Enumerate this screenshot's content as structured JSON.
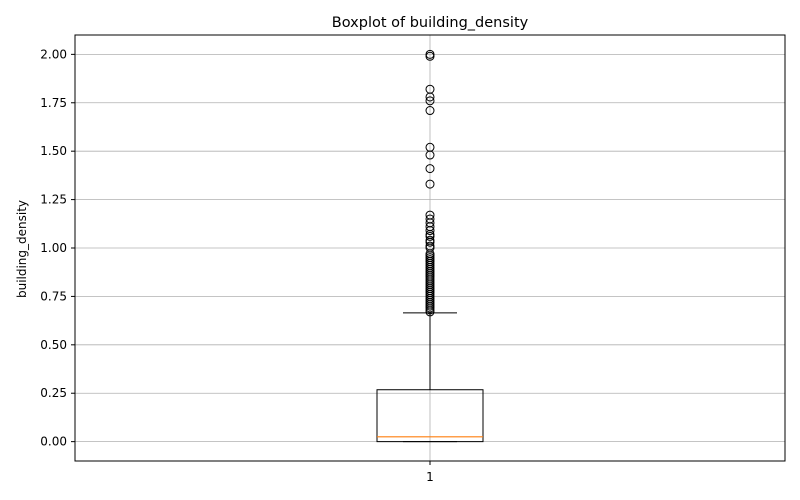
{
  "chart_data": {
    "type": "box",
    "title": "Boxplot of building_density",
    "xlabel": "",
    "ylabel": "building_density",
    "ylim": [
      -0.1,
      2.1
    ],
    "y_ticks": [
      0.0,
      0.25,
      0.5,
      0.75,
      1.0,
      1.25,
      1.5,
      1.75,
      2.0
    ],
    "y_tick_labels": [
      "0.00",
      "0.25",
      "0.50",
      "0.75",
      "1.00",
      "1.25",
      "1.50",
      "1.75",
      "2.00"
    ],
    "x_tick_labels": [
      "1"
    ],
    "grid": true,
    "box": {
      "whisker_low": 0.0,
      "q1": 0.0,
      "median": 0.025,
      "q3": 0.268,
      "whisker_high": 0.665
    },
    "outliers": [
      0.67,
      0.68,
      0.69,
      0.7,
      0.71,
      0.72,
      0.73,
      0.74,
      0.75,
      0.76,
      0.77,
      0.78,
      0.79,
      0.8,
      0.81,
      0.82,
      0.83,
      0.84,
      0.85,
      0.86,
      0.87,
      0.88,
      0.89,
      0.9,
      0.91,
      0.92,
      0.93,
      0.94,
      0.95,
      0.96,
      0.97,
      1.0,
      1.01,
      1.03,
      1.04,
      1.06,
      1.07,
      1.09,
      1.11,
      1.13,
      1.15,
      1.17,
      1.33,
      1.41,
      1.48,
      1.52,
      1.71,
      1.76,
      1.78,
      1.82,
      1.99,
      2.0
    ],
    "colors": {
      "box": "#000000",
      "median": "#ff7f0e",
      "grid": "#b0b0b0",
      "outlier_edge": "#000000"
    }
  }
}
